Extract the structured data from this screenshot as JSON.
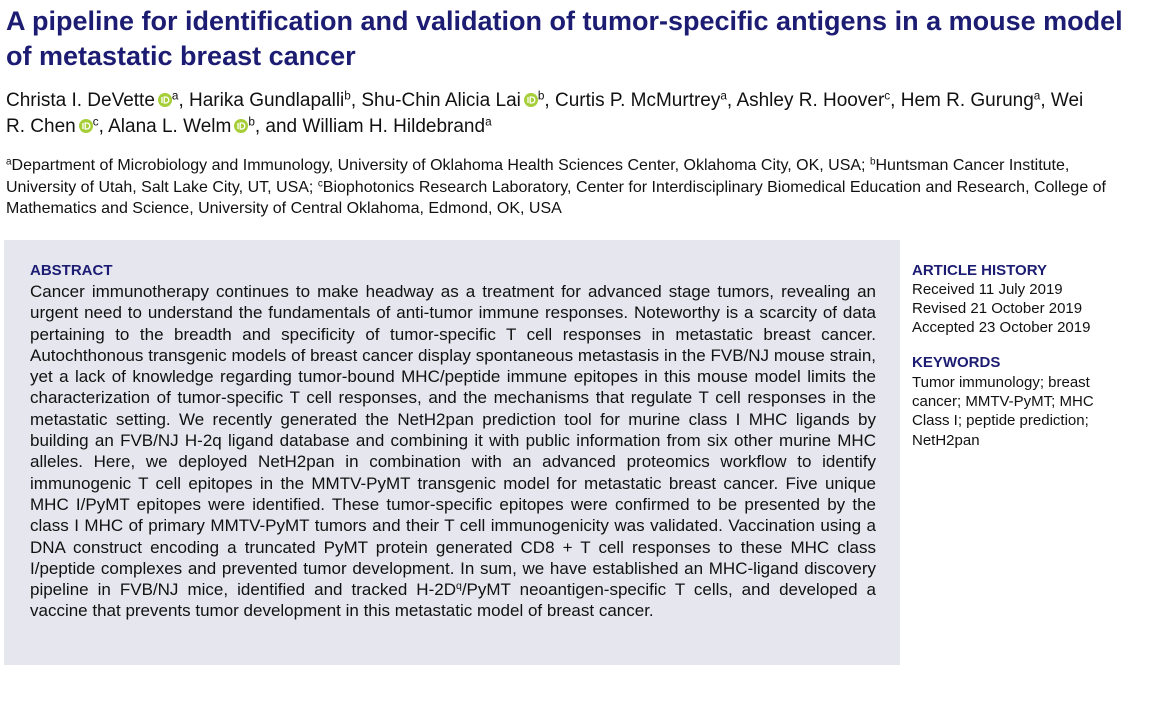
{
  "header": {
    "title": "A pipeline for identification and validation of tumor-specific antigens in a mouse model of metastatic breast cancer",
    "authors": [
      {
        "name": "Christa I. DeVette",
        "orcid": true,
        "affiliation": "a",
        "sep": ", "
      },
      {
        "name": "Harika Gundlapalli",
        "orcid": false,
        "affiliation": "b",
        "sep": ", "
      },
      {
        "name": "Shu-Chin Alicia Lai",
        "orcid": true,
        "affiliation": "b",
        "sep": ", "
      },
      {
        "name": "Curtis P. McMurtrey",
        "orcid": false,
        "affiliation": "a",
        "sep": ", "
      },
      {
        "name": "Ashley R. Hoover",
        "orcid": false,
        "affiliation": "c",
        "sep": ", "
      },
      {
        "name": "Hem R. Gurung",
        "orcid": false,
        "affiliation": "a",
        "sep": ", "
      },
      {
        "name": "Wei R. Chen",
        "orcid": true,
        "affiliation": "c",
        "sep": ", "
      },
      {
        "name": "Alana L. Welm",
        "orcid": true,
        "affiliation": "b",
        "sep": ", and "
      },
      {
        "name": "William H. Hildebrand",
        "orcid": false,
        "affiliation": "a"
      }
    ],
    "affiliations": [
      {
        "label": "a",
        "text": "Department of Microbiology and Immunology, University of Oklahoma Health Sciences Center, Oklahoma City, OK, USA; "
      },
      {
        "label": "b",
        "text": "Huntsman Cancer Institute, University of Utah, Salt Lake City, UT, USA; "
      },
      {
        "label": "c",
        "text": "Biophotonics Research Laboratory, Center for Interdisciplinary Biomedical Education and Research, College of Mathematics and Science, University of Central Oklahoma, Edmond, OK, USA"
      }
    ]
  },
  "abstract": {
    "heading": "ABSTRACT",
    "text_before": "Cancer immunotherapy continues to make headway as a treatment for advanced stage tumors, revealing an urgent need to understand the fundamentals of anti-tumor immune responses. Noteworthy is a scarcity of data pertaining to the breadth and specificity of tumor-specific T cell responses in metastatic breast cancer. Autochthonous transgenic models of breast cancer display spontaneous metastasis in the FVB/NJ mouse strain, yet a lack of knowledge regarding tumor-bound MHC/peptide immune epitopes in this mouse model limits the characterization of tumor-specific T cell responses, and the mechanisms that regulate T cell responses in the metastatic setting. We recently generated the NetH2pan prediction tool for murine class I MHC ligands by building an FVB/NJ H-2q ligand database and combining it with public information from six other murine MHC alleles. Here, we deployed NetH2pan in combination with an advanced proteomics workflow to identify immunogenic T cell epitopes in the MMTV-PyMT transgenic model for metastatic breast cancer. Five unique MHC I/PyMT epitopes were identified. These tumor-specific epitopes were confirmed to be presented by the class I MHC of primary MMTV-PyMT tumors and their T cell immunogenicity was validated. Vaccination using a DNA construct encoding a truncated PyMT protein generated CD8 + T cell responses to these MHC class I/peptide complexes and prevented tumor development. In sum, we have established an MHC-ligand discovery pipeline in FVB/NJ mice, identified and tracked H-2D",
    "text_superscript": "q",
    "text_after": "/PyMT neoantigen-specific T cells, and developed a vaccine that prevents tumor development in this metastatic model of breast cancer."
  },
  "sidebar": {
    "history_heading": "ARTICLE HISTORY",
    "history": [
      "Received 11 July 2019",
      "Revised 21 October 2019",
      "Accepted 23 October 2019"
    ],
    "keywords_heading": "KEYWORDS",
    "keywords": "Tumor immunology; breast cancer; MMTV-PyMT; MHC Class I; peptide prediction; NetH2pan"
  }
}
